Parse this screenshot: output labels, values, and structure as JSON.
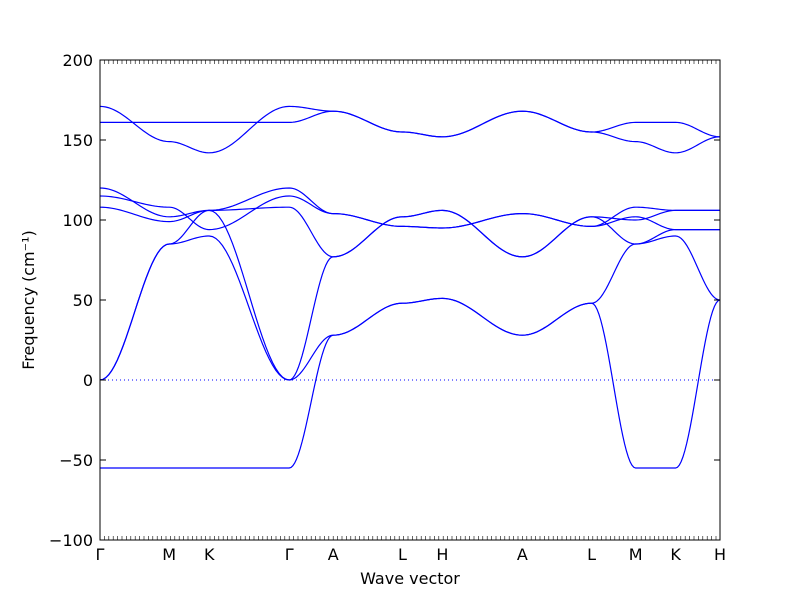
{
  "chart_data": {
    "type": "line",
    "title": "",
    "xlabel": "Wave vector",
    "ylabel": "Frequency (cm⁻¹)",
    "ylim": [
      -100,
      200
    ],
    "yticks": [
      -100,
      -50,
      0,
      50,
      100,
      150,
      200
    ],
    "ytick_labels": [
      "−100",
      "−50",
      "0",
      "50",
      "100",
      "150",
      "200"
    ],
    "xlim": [
      0,
      15.5
    ],
    "x_ticks": [
      {
        "label": "Γ",
        "x": 0
      },
      {
        "label": "M",
        "x": 1.73
      },
      {
        "label": "K",
        "x": 2.73
      },
      {
        "label": "Γ",
        "x": 4.73
      },
      {
        "label": "A",
        "x": 5.83
      },
      {
        "label": "L",
        "x": 7.56
      },
      {
        "label": "H",
        "x": 8.56
      },
      {
        "label": "A",
        "x": 10.56
      },
      {
        "label": "L",
        "x": 12.29
      },
      {
        "label": "M",
        "x": 13.39
      },
      {
        "label": "K",
        "x": 14.39
      },
      {
        "label": "H",
        "x": 15.5
      }
    ],
    "zero_line": {
      "y": 0,
      "style": "dotted"
    },
    "series_color": "#0000ff",
    "series": [
      {
        "x": [
          0,
          1.73,
          2.73,
          4.73,
          5.83,
          7.56,
          8.56,
          10.56,
          12.29,
          13.39,
          14.39,
          15.5
        ],
        "values": [
          171,
          149,
          142,
          171,
          168,
          155,
          152,
          168,
          155,
          149,
          142,
          152
        ]
      },
      {
        "x": [
          0,
          1.73,
          2.73,
          4.73,
          5.83,
          7.56,
          8.56,
          10.56,
          12.29,
          13.39,
          14.39,
          15.5
        ],
        "values": [
          161,
          161,
          161,
          161,
          168,
          155,
          152,
          168,
          155,
          161,
          161,
          152
        ]
      },
      {
        "x": [
          0,
          1.73,
          2.73,
          4.73,
          5.83,
          7.56,
          8.56,
          10.56,
          12.29,
          13.39,
          14.39,
          15.5
        ],
        "values": [
          120,
          102,
          106,
          120,
          104,
          96,
          95,
          104,
          96,
          108,
          106,
          106
        ]
      },
      {
        "x": [
          0,
          1.73,
          2.73,
          4.73,
          5.83,
          7.56,
          8.56,
          10.56,
          12.29,
          13.39,
          14.39,
          15.5
        ],
        "values": [
          115,
          108,
          94,
          115,
          104,
          96,
          95,
          104,
          96,
          102,
          94,
          94
        ]
      },
      {
        "x": [
          0,
          1.73,
          2.73,
          4.73,
          5.83,
          7.56,
          8.56,
          10.56,
          12.29,
          13.39,
          14.39,
          15.5
        ],
        "values": [
          108,
          99,
          106,
          108,
          77,
          102,
          106,
          77,
          102,
          100,
          106,
          106
        ]
      },
      {
        "x": [
          0,
          1.73,
          2.73,
          4.73,
          5.83,
          7.56,
          8.56,
          10.56,
          12.29,
          13.39,
          14.39,
          15.5
        ],
        "values": [
          0,
          85,
          106,
          0,
          77,
          102,
          106,
          77,
          102,
          85,
          90,
          50
        ]
      },
      {
        "x": [
          0,
          1.73,
          2.73,
          4.73,
          5.83,
          7.56,
          8.56,
          10.56,
          12.29,
          13.39,
          14.39,
          15.5
        ],
        "values": [
          0,
          85,
          90,
          0,
          28,
          48,
          51,
          28,
          48,
          85,
          94,
          94
        ]
      },
      {
        "x": [
          0,
          1.73,
          2.73,
          4.73,
          5.83,
          7.56,
          8.56,
          10.56,
          12.29,
          13.39,
          14.39,
          15.5
        ],
        "values": [
          -55,
          -55,
          -55,
          -55,
          28,
          48,
          51,
          28,
          48,
          -55,
          -55,
          50
        ]
      }
    ]
  }
}
